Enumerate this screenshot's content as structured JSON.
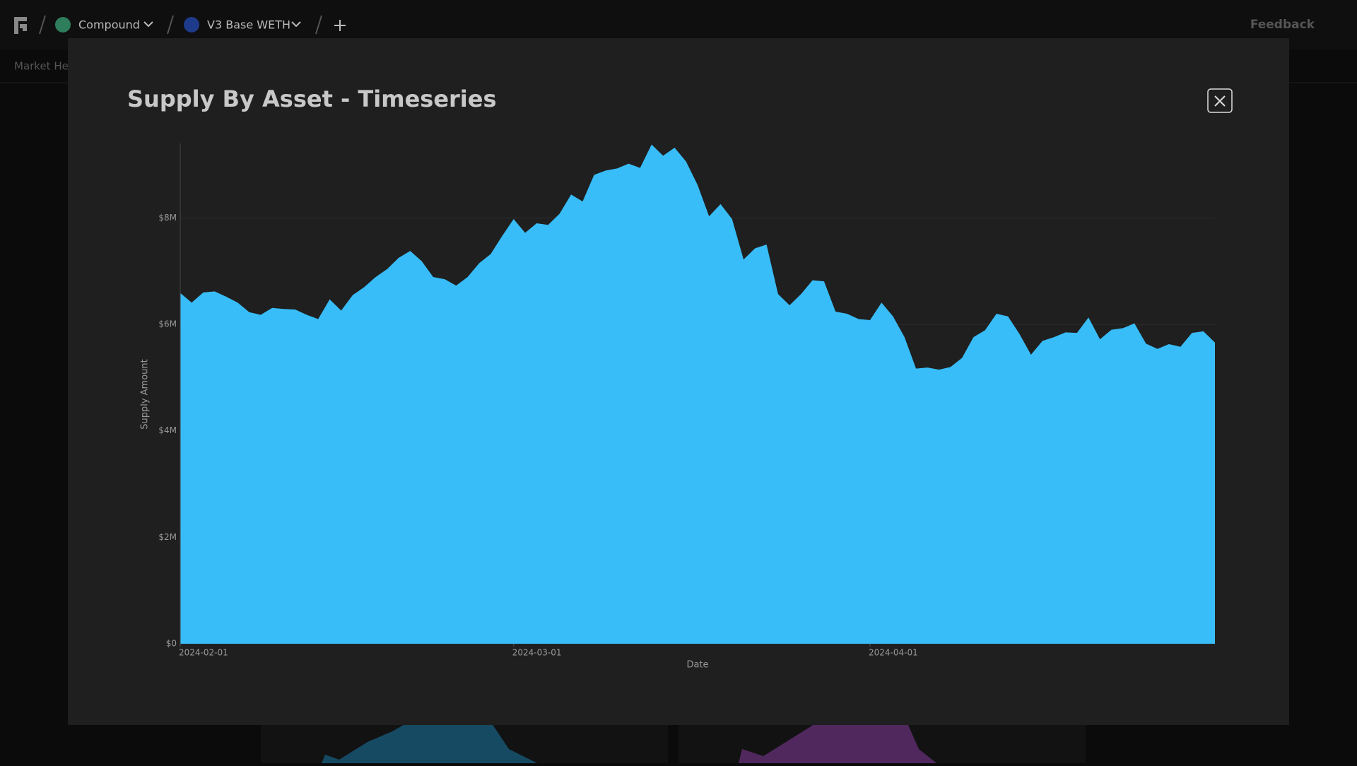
{
  "nav": {
    "protocol": "Compound",
    "market": "V3 Base WETH",
    "feedback": "Feedback",
    "tab": "Market Health"
  },
  "chart_data": {
    "type": "area",
    "title": "Supply By Asset - Timeseries",
    "x_label": "Date",
    "y_label": "Supply Amount",
    "color": "#38bdf8",
    "grid": true,
    "x": [
      "2024-02-01",
      "2024-02-02",
      "2024-02-03",
      "2024-02-04",
      "2024-02-05",
      "2024-02-06",
      "2024-02-07",
      "2024-02-08",
      "2024-02-09",
      "2024-02-10",
      "2024-02-11",
      "2024-02-12",
      "2024-02-13",
      "2024-02-14",
      "2024-02-15",
      "2024-02-16",
      "2024-02-17",
      "2024-02-18",
      "2024-02-19",
      "2024-02-20",
      "2024-02-21",
      "2024-02-22",
      "2024-02-23",
      "2024-02-24",
      "2024-02-25",
      "2024-02-26",
      "2024-02-27",
      "2024-02-28",
      "2024-02-29",
      "2024-03-01",
      "2024-03-02",
      "2024-03-03",
      "2024-03-04",
      "2024-03-05",
      "2024-03-06",
      "2024-03-07",
      "2024-03-08",
      "2024-03-09",
      "2024-03-10",
      "2024-03-11",
      "2024-03-12",
      "2024-03-13",
      "2024-03-14",
      "2024-03-15",
      "2024-03-16",
      "2024-03-17",
      "2024-03-18",
      "2024-03-19",
      "2024-03-20",
      "2024-03-21",
      "2024-03-22",
      "2024-03-23",
      "2024-03-24",
      "2024-03-25",
      "2024-03-26",
      "2024-03-27",
      "2024-03-28",
      "2024-03-29",
      "2024-03-30",
      "2024-03-31",
      "2024-04-01",
      "2024-04-02",
      "2024-04-03",
      "2024-04-04",
      "2024-04-05",
      "2024-04-06",
      "2024-04-07",
      "2024-04-08",
      "2024-04-09",
      "2024-04-10",
      "2024-04-11",
      "2024-04-12",
      "2024-04-13",
      "2024-04-14",
      "2024-04-15",
      "2024-04-16",
      "2024-04-17",
      "2024-04-18",
      "2024-04-19",
      "2024-04-20",
      "2024-04-21",
      "2024-04-22",
      "2024-04-23",
      "2024-04-24",
      "2024-04-25",
      "2024-04-26",
      "2024-04-27",
      "2024-04-28",
      "2024-04-29",
      "2024-04-30",
      "2024-05-01"
    ],
    "values": [
      6590000,
      6410000,
      6600000,
      6620000,
      6520000,
      6410000,
      6230000,
      6180000,
      6310000,
      6290000,
      6280000,
      6180000,
      6100000,
      6470000,
      6260000,
      6550000,
      6700000,
      6890000,
      7040000,
      7250000,
      7380000,
      7190000,
      6890000,
      6850000,
      6730000,
      6890000,
      7150000,
      7320000,
      7660000,
      7980000,
      7720000,
      7900000,
      7870000,
      8080000,
      8440000,
      8310000,
      8810000,
      8890000,
      8930000,
      9020000,
      8940000,
      9380000,
      9170000,
      9320000,
      9060000,
      8620000,
      8030000,
      8260000,
      7980000,
      7220000,
      7430000,
      7500000,
      6570000,
      6360000,
      6570000,
      6830000,
      6810000,
      6240000,
      6200000,
      6100000,
      6080000,
      6410000,
      6150000,
      5760000,
      5170000,
      5190000,
      5150000,
      5200000,
      5370000,
      5760000,
      5890000,
      6200000,
      6150000,
      5820000,
      5430000,
      5690000,
      5760000,
      5850000,
      5840000,
      6130000,
      5720000,
      5900000,
      5930000,
      6020000,
      5640000,
      5540000,
      5630000,
      5580000,
      5840000,
      5870000,
      5660000
    ],
    "xlim": [
      "2024-02-01",
      "2024-05-01"
    ],
    "xticks": [
      "2024-02-01",
      "2024-03-01",
      "2024-04-01"
    ],
    "ylim": [
      0,
      9400000
    ],
    "yticks": [
      {
        "value": 0,
        "label": "$0"
      },
      {
        "value": 2000000,
        "label": "$2M"
      },
      {
        "value": 4000000,
        "label": "$4M"
      },
      {
        "value": 6000000,
        "label": "$6M"
      },
      {
        "value": 8000000,
        "label": "$8M"
      }
    ]
  }
}
